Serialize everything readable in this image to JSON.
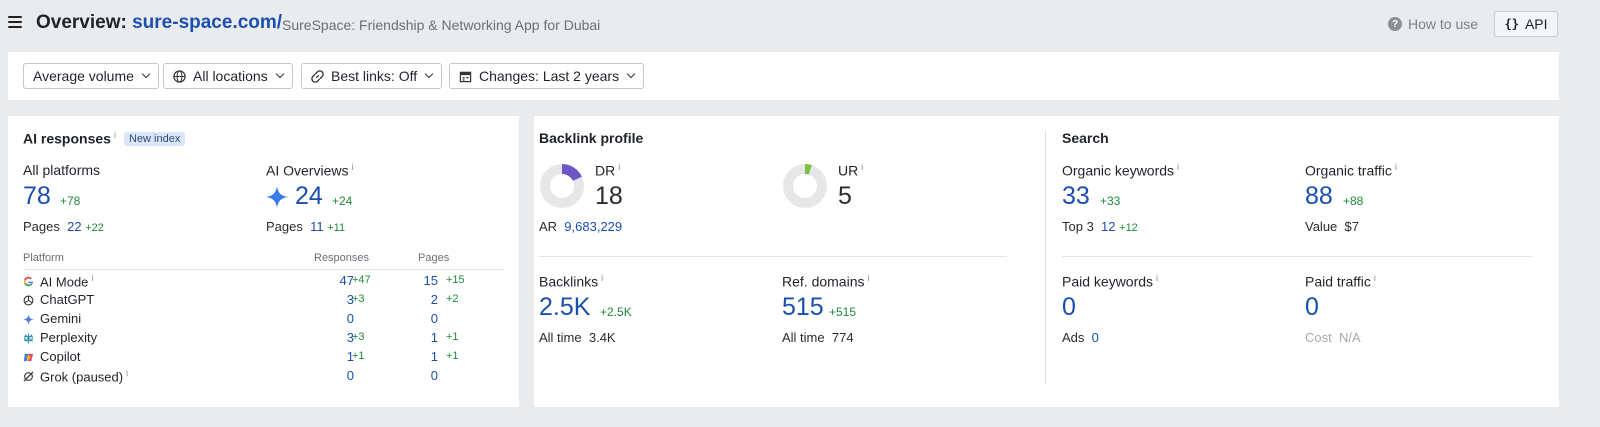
{
  "header": {
    "title_prefix": "Overview:",
    "domain": "sure-space.com/",
    "subtitle": "SureSpace: Friendship & Networking App for Dubai",
    "how_to_use": "How to use",
    "api_label": "API"
  },
  "filters": {
    "volume": "Average volume",
    "locations": "All locations",
    "best_links": "Best links: Off",
    "changes": "Changes: Last 2 years"
  },
  "ai": {
    "title": "AI responses",
    "badge": "New index",
    "all_platforms": {
      "label": "All platforms",
      "value": "78",
      "delta": "+78",
      "pages_label": "Pages",
      "pages": "22",
      "pages_delta": "+22"
    },
    "ai_overviews": {
      "label": "AI Overviews",
      "value": "24",
      "delta": "+24",
      "pages_label": "Pages",
      "pages": "11",
      "pages_delta": "+11"
    },
    "table": {
      "headers": [
        "Platform",
        "Responses",
        "Pages"
      ],
      "rows": [
        {
          "name": "AI Mode",
          "icon": "google-icon",
          "responses": "47",
          "responses_delta": "+47",
          "pages": "15",
          "pages_delta": "+15"
        },
        {
          "name": "ChatGPT",
          "icon": "chatgpt-icon",
          "responses": "3",
          "responses_delta": "+3",
          "pages": "2",
          "pages_delta": "+2"
        },
        {
          "name": "Gemini",
          "icon": "gemini-icon",
          "responses": "0",
          "responses_delta": "",
          "pages": "0",
          "pages_delta": ""
        },
        {
          "name": "Perplexity",
          "icon": "perplexity-icon",
          "responses": "3",
          "responses_delta": "+3",
          "pages": "1",
          "pages_delta": "+1"
        },
        {
          "name": "Copilot",
          "icon": "copilot-icon",
          "responses": "1",
          "responses_delta": "+1",
          "pages": "1",
          "pages_delta": "+1"
        },
        {
          "name": "Grok (paused)",
          "icon": "grok-icon",
          "responses": "0",
          "responses_delta": "",
          "pages": "0",
          "pages_delta": ""
        }
      ]
    }
  },
  "backlinks": {
    "title": "Backlink profile",
    "dr": {
      "label": "DR",
      "value": "18",
      "fill_percent": 18,
      "color": "#6f56c8"
    },
    "ur": {
      "label": "UR",
      "value": "5",
      "fill_percent": 5,
      "color": "#7cc242"
    },
    "ar_label": "AR",
    "ar_value": "9,683,229",
    "backlinks": {
      "label": "Backlinks",
      "value": "2.5K",
      "delta": "+2.5K",
      "all_time_label": "All time",
      "all_time": "3.4K"
    },
    "ref_domains": {
      "label": "Ref. domains",
      "value": "515",
      "delta": "+515",
      "all_time_label": "All time",
      "all_time": "774"
    }
  },
  "search": {
    "title": "Search",
    "organic_keywords": {
      "label": "Organic keywords",
      "value": "33",
      "delta": "+33",
      "sub_label": "Top 3",
      "sub_value": "12",
      "sub_delta": "+12"
    },
    "organic_traffic": {
      "label": "Organic traffic",
      "value": "88",
      "delta": "+88",
      "sub_label": "Value",
      "sub_value": "$7"
    },
    "paid_keywords": {
      "label": "Paid keywords",
      "value": "0",
      "sub_label": "Ads",
      "sub_value": "0"
    },
    "paid_traffic": {
      "label": "Paid traffic",
      "value": "0",
      "sub_label": "Cost",
      "sub_value": "N/A"
    }
  }
}
